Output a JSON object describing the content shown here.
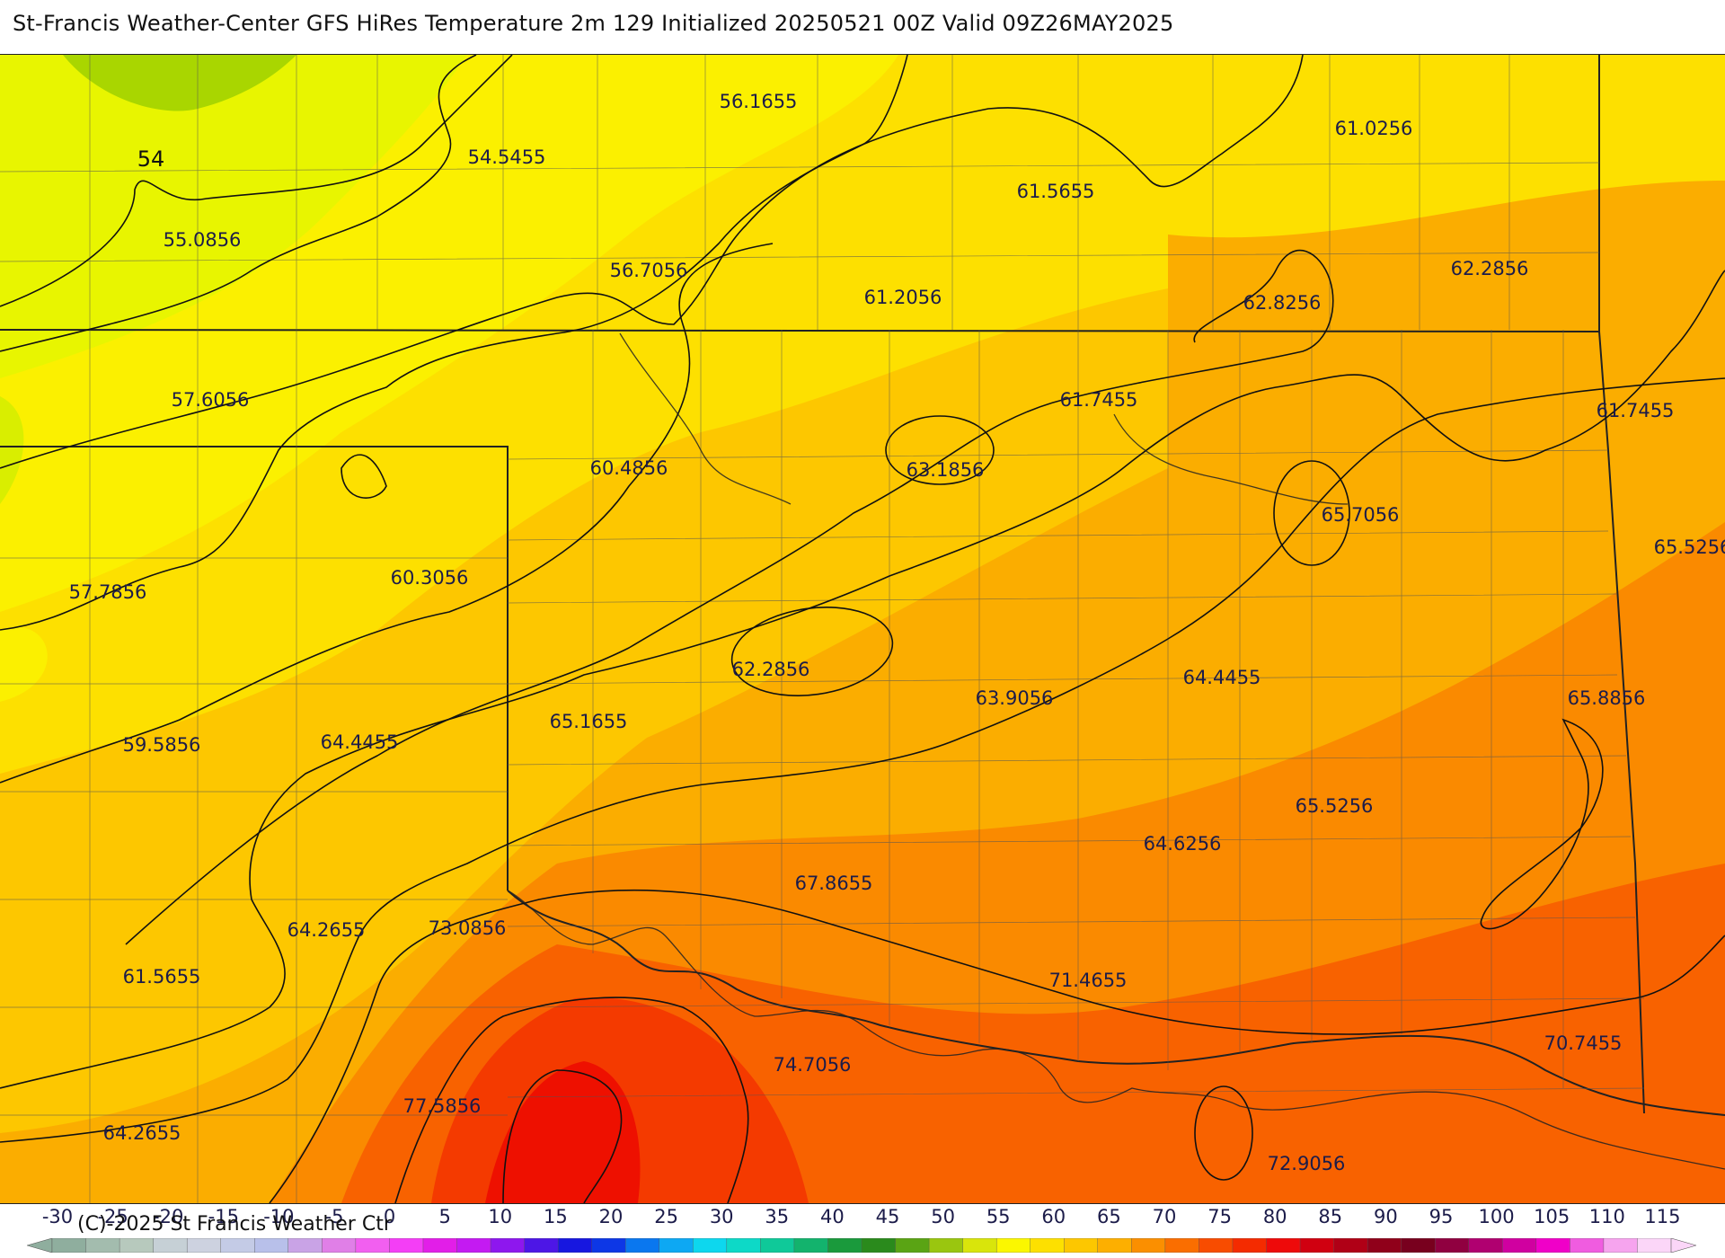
{
  "title": "St-Francis Weather-Center GFS HiRes Temperature 2m  129 Initialized 20250521 00Z Valid 09Z26MAY2025",
  "copyright": "(C)-2025 St Francis Weather Ctr",
  "contour_label": "54",
  "point_values": [
    "56.1655",
    "54.5455",
    "55.0856",
    "56.7056",
    "61.5655",
    "61.0256",
    "61.2056",
    "62.2856",
    "62.8256",
    "57.6056",
    "60.4856",
    "63.1856",
    "61.7455",
    "61.7455",
    "65.7056",
    "65.5256",
    "57.7856",
    "60.3056",
    "62.2856",
    "63.9056",
    "64.4455",
    "65.8856",
    "65.1655",
    "59.5856",
    "64.4455",
    "65.5256",
    "64.6256",
    "67.8655",
    "64.2655",
    "73.0856",
    "71.4655",
    "61.5655",
    "74.7056",
    "70.7455",
    "77.5856",
    "64.2655",
    "72.9056"
  ],
  "colorbar": {
    "tick_labels": [
      "-30",
      "-25",
      "-20",
      "-15",
      "-10",
      "-5",
      "0",
      "5",
      "10",
      "15",
      "20",
      "25",
      "30",
      "35",
      "40",
      "45",
      "50",
      "55",
      "60",
      "65",
      "70",
      "75",
      "80",
      "85",
      "90",
      "95",
      "100",
      "105",
      "110",
      "115"
    ],
    "colors": [
      "#8fae9e",
      "#a3bcae",
      "#b7c9bd",
      "#c6d0d6",
      "#cdd2e0",
      "#c4cbe6",
      "#b8c0ea",
      "#c9a3e6",
      "#e07fe7",
      "#f25ff0",
      "#f43ef6",
      "#e21ee8",
      "#c41af2",
      "#8e17ee",
      "#4d16e6",
      "#1717e0",
      "#0d37e6",
      "#0a77ef",
      "#0da8f3",
      "#0dd7ee",
      "#0dd9c7",
      "#0fc999",
      "#13b36d",
      "#1a9a3c",
      "#2a8a1c",
      "#5aa414",
      "#9ac60f",
      "#d9e50b",
      "#fbf700",
      "#fde000",
      "#fdc700",
      "#fdaf00",
      "#fb8f00",
      "#fa6e00",
      "#f84c00",
      "#f42b00",
      "#ee0a0a",
      "#d00010",
      "#b00016",
      "#90001a",
      "#78001e",
      "#900040",
      "#b00070",
      "#d000a0",
      "#f000c8",
      "#f05ce0",
      "#f6a4ee",
      "#fbd6f8"
    ]
  },
  "colors": {
    "coolest": "#a9d600",
    "cool": "#e8f500",
    "mild": "#fbf000",
    "warm1": "#fde000",
    "warm2": "#fdc700",
    "warm3": "#fbad00",
    "hot1": "#fa8a00",
    "hot2": "#f86200",
    "hot3": "#f43a00",
    "hottest": "#ee1000"
  }
}
